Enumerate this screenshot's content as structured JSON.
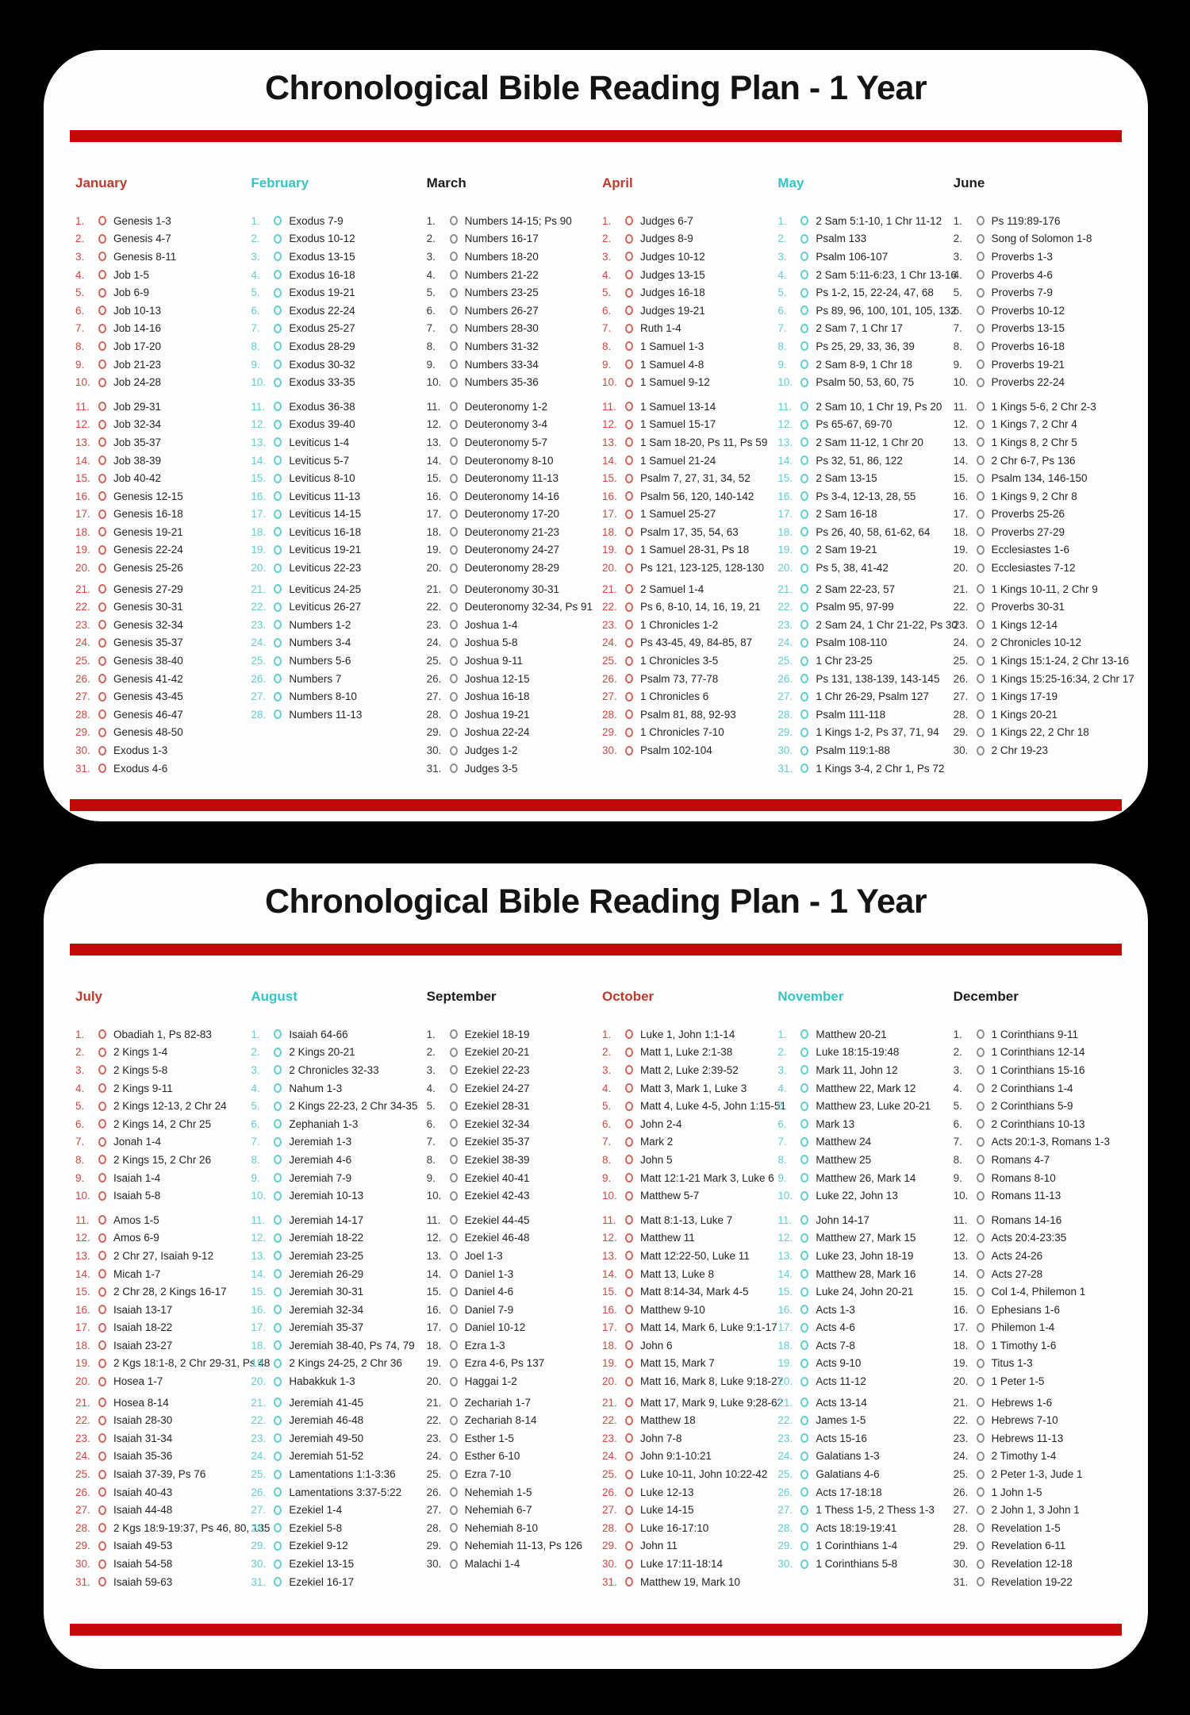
{
  "colors": {
    "background": "#000000",
    "card": "#fdfdfd",
    "divider_red": "#c40808",
    "month_red": "#bf3a2b",
    "month_cyan": "#35c4c4",
    "month_dark": "#1d1d1d",
    "reading_text": "#242424"
  },
  "pages": [
    {
      "title": "Chronological Bible Reading Plan - 1 Year",
      "months": [
        {
          "name": "January",
          "theme": "red",
          "readings": [
            "Genesis 1-3",
            "Genesis 4-7",
            "Genesis 8-11",
            "Job 1-5",
            "Job 6-9",
            "Job 10-13",
            "Job 14-16",
            "Job 17-20",
            "Job 21-23",
            "Job 24-28",
            "Job 29-31",
            "Job 32-34",
            "Job 35-37",
            "Job 38-39",
            "Job 40-42",
            "Genesis 12-15",
            "Genesis 16-18",
            "Genesis 19-21",
            "Genesis 22-24",
            "Genesis 25-26",
            "Genesis 27-29",
            "Genesis 30-31",
            "Genesis 32-34",
            "Genesis 35-37",
            "Genesis 38-40",
            "Genesis 41-42",
            "Genesis 43-45",
            "Genesis 46-47",
            "Genesis 48-50",
            "Exodus 1-3",
            "Exodus 4-6"
          ]
        },
        {
          "name": "February",
          "theme": "cyan",
          "readings": [
            "Exodus 7-9",
            "Exodus 10-12",
            "Exodus 13-15",
            "Exodus 16-18",
            "Exodus 19-21",
            "Exodus 22-24",
            "Exodus 25-27",
            "Exodus 28-29",
            "Exodus 30-32",
            "Exodus 33-35",
            "Exodus 36-38",
            "Exodus 39-40",
            "Leviticus 1-4",
            "Leviticus 5-7",
            "Leviticus 8-10",
            "Leviticus 11-13",
            "Leviticus 14-15",
            "Leviticus 16-18",
            "Leviticus 19-21",
            "Leviticus 22-23",
            "Leviticus 24-25",
            "Leviticus 26-27",
            "Numbers 1-2",
            "Numbers 3-4",
            "Numbers 5-6",
            "Numbers 7",
            "Numbers 8-10",
            "Numbers 11-13"
          ]
        },
        {
          "name": "March",
          "theme": "dark",
          "readings": [
            "Numbers 14-15; Ps 90",
            "Numbers 16-17",
            "Numbers 18-20",
            "Numbers 21-22",
            "Numbers 23-25",
            "Numbers 26-27",
            "Numbers 28-30",
            "Numbers 31-32",
            "Numbers 33-34",
            "Numbers 35-36",
            "Deuteronomy 1-2",
            "Deuteronomy 3-4",
            "Deuteronomy 5-7",
            "Deuteronomy 8-10",
            "Deuteronomy 11-13",
            "Deuteronomy 14-16",
            "Deuteronomy 17-20",
            "Deuteronomy 21-23",
            "Deuteronomy 24-27",
            "Deuteronomy 28-29",
            "Deuteronomy 30-31",
            "Deuteronomy 32-34, Ps 91",
            "Joshua 1-4",
            "Joshua 5-8",
            "Joshua 9-11",
            "Joshua 12-15",
            "Joshua 16-18",
            "Joshua 19-21",
            "Joshua 22-24",
            "Judges 1-2",
            "Judges 3-5"
          ]
        },
        {
          "name": "April",
          "theme": "red",
          "readings": [
            "Judges 6-7",
            "Judges 8-9",
            "Judges 10-12",
            "Judges 13-15",
            "Judges 16-18",
            "Judges 19-21",
            "Ruth 1-4",
            "1 Samuel 1-3",
            "1 Samuel 4-8",
            "1 Samuel 9-12",
            "1 Samuel 13-14",
            "1 Samuel 15-17",
            "1 Sam 18-20, Ps 11, Ps 59",
            "1 Samuel 21-24",
            "Psalm 7, 27, 31, 34, 52",
            "Psalm 56, 120, 140-142",
            "1 Samuel 25-27",
            "Psalm 17, 35, 54, 63",
            "1 Samuel 28-31, Ps 18",
            "Ps 121, 123-125, 128-130",
            "2 Samuel 1-4",
            "Ps 6, 8-10, 14, 16, 19, 21",
            "1 Chronicles 1-2",
            "Ps 43-45, 49, 84-85, 87",
            "1 Chronicles 3-5",
            "Psalm 73, 77-78",
            "1 Chronicles 6",
            "Psalm 81, 88, 92-93",
            "1 Chronicles 7-10",
            "Psalm 102-104"
          ]
        },
        {
          "name": "May",
          "theme": "cyan",
          "readings": [
            "2 Sam 5:1-10, 1 Chr 11-12",
            "Psalm 133",
            "Psalm 106-107",
            "2 Sam 5:11-6:23, 1 Chr 13-16",
            "Ps 1-2, 15, 22-24, 47, 68",
            "Ps 89, 96, 100, 101, 105, 132",
            "2 Sam 7, 1 Chr 17",
            "Ps 25, 29, 33, 36, 39",
            "2 Sam 8-9, 1 Chr 18",
            "Psalm 50, 53, 60, 75",
            "2 Sam 10, 1 Chr 19, Ps 20",
            "Ps 65-67, 69-70",
            "2 Sam 11-12, 1 Chr 20",
            "Ps 32, 51, 86, 122",
            "2 Sam 13-15",
            "Ps 3-4, 12-13, 28, 55",
            "2 Sam 16-18",
            "Ps 26, 40, 58, 61-62, 64",
            "2 Sam 19-21",
            "Ps 5, 38, 41-42",
            "2 Sam 22-23, 57",
            "Psalm 95, 97-99",
            "2 Sam 24, 1 Chr 21-22, Ps 30",
            "Psalm 108-110",
            "1 Chr 23-25",
            "Ps 131, 138-139, 143-145",
            "1 Chr 26-29, Psalm 127",
            "Psalm 111-118",
            "1 Kings 1-2, Ps 37, 71, 94",
            "Psalm 119:1-88",
            "1 Kings 3-4, 2 Chr 1, Ps 72"
          ]
        },
        {
          "name": "June",
          "theme": "dark",
          "readings": [
            "Ps 119:89-176",
            "Song of Solomon 1-8",
            "Proverbs 1-3",
            "Proverbs 4-6",
            "Proverbs 7-9",
            "Proverbs 10-12",
            "Proverbs 13-15",
            "Proverbs 16-18",
            "Proverbs 19-21",
            "Proverbs 22-24",
            "1 Kings 5-6, 2 Chr 2-3",
            "1 Kings 7, 2 Chr 4",
            "1 Kings 8, 2 Chr 5",
            "2 Chr 6-7, Ps 136",
            "Psalm 134, 146-150",
            "1 Kings 9, 2 Chr 8",
            "Proverbs 25-26",
            "Proverbs 27-29",
            "Ecclesiastes 1-6",
            "Ecclesiastes 7-12",
            "1 Kings 10-11, 2 Chr 9",
            "Proverbs 30-31",
            "1 Kings 12-14",
            "2 Chronicles 10-12",
            "1 Kings 15:1-24, 2 Chr 13-16",
            "1 Kings 15:25-16:34, 2 Chr 17",
            "1 Kings 17-19",
            "1 Kings 20-21",
            "1 Kings 22, 2 Chr 18",
            "2 Chr 19-23"
          ]
        }
      ]
    },
    {
      "title": "Chronological Bible Reading Plan - 1 Year",
      "months": [
        {
          "name": "July",
          "theme": "red",
          "readings": [
            "Obadiah 1, Ps 82-83",
            "2 Kings 1-4",
            "2 Kings 5-8",
            "2 Kings 9-11",
            "2 Kings 12-13, 2 Chr 24",
            "2 Kings 14, 2 Chr 25",
            "Jonah 1-4",
            "2 Kings 15, 2 Chr 26",
            "Isaiah 1-4",
            "Isaiah 5-8",
            "Amos 1-5",
            "Amos 6-9",
            "2 Chr 27, Isaiah 9-12",
            "Micah 1-7",
            "2 Chr 28, 2 Kings 16-17",
            "Isaiah 13-17",
            "Isaiah 18-22",
            "Isaiah 23-27",
            "2 Kgs 18:1-8, 2 Chr 29-31, Ps 48",
            "Hosea 1-7",
            "Hosea 8-14",
            "Isaiah 28-30",
            "Isaiah 31-34",
            "Isaiah 35-36",
            "Isaiah 37-39, Ps 76",
            "Isaiah 40-43",
            "Isaiah 44-48",
            "2 Kgs 18:9-19:37, Ps 46, 80, 135",
            "Isaiah 49-53",
            "Isaiah 54-58",
            "Isaiah 59-63"
          ]
        },
        {
          "name": "August",
          "theme": "cyan",
          "readings": [
            "Isaiah 64-66",
            "2 Kings 20-21",
            "2 Chronicles 32-33",
            "Nahum 1-3",
            "2 Kings 22-23, 2 Chr 34-35",
            "Zephaniah 1-3",
            "Jeremiah 1-3",
            "Jeremiah 4-6",
            "Jeremiah 7-9",
            "Jeremiah 10-13",
            "Jeremiah 14-17",
            "Jeremiah 18-22",
            "Jeremiah 23-25",
            "Jeremiah 26-29",
            "Jeremiah 30-31",
            "Jeremiah 32-34",
            "Jeremiah 35-37",
            "Jeremiah 38-40, Ps 74, 79",
            "2 Kings 24-25, 2 Chr 36",
            "Habakkuk 1-3",
            "Jeremiah 41-45",
            "Jeremiah 46-48",
            "Jeremiah 49-50",
            "Jeremiah 51-52",
            "Lamentations 1:1-3:36",
            "Lamentations 3:37-5:22",
            "Ezekiel 1-4",
            "Ezekiel 5-8",
            "Ezekiel 9-12",
            "Ezekiel 13-15",
            "Ezekiel 16-17"
          ]
        },
        {
          "name": "September",
          "theme": "dark",
          "readings": [
            "Ezekiel 18-19",
            "Ezekiel 20-21",
            "Ezekiel 22-23",
            "Ezekiel 24-27",
            "Ezekiel 28-31",
            "Ezekiel 32-34",
            "Ezekiel 35-37",
            "Ezekiel 38-39",
            "Ezekiel 40-41",
            "Ezekiel 42-43",
            "Ezekiel 44-45",
            "Ezekiel 46-48",
            "Joel 1-3",
            "Daniel 1-3",
            "Daniel 4-6",
            "Daniel 7-9",
            "Daniel 10-12",
            "Ezra 1-3",
            "Ezra 4-6, Ps 137",
            "Haggai 1-2",
            "Zechariah 1-7",
            "Zechariah 8-14",
            "Esther 1-5",
            "Esther 6-10",
            "Ezra 7-10",
            "Nehemiah 1-5",
            "Nehemiah 6-7",
            "Nehemiah 8-10",
            "Nehemiah 11-13, Ps 126",
            "Malachi 1-4"
          ]
        },
        {
          "name": "October",
          "theme": "red",
          "readings": [
            "Luke 1, John 1:1-14",
            "Matt 1, Luke 2:1-38",
            "Matt 2, Luke 2:39-52",
            "Matt 3, Mark 1, Luke 3",
            "Matt 4, Luke 4-5, John 1:15-51",
            "John 2-4",
            "Mark 2",
            "John 5",
            "Matt 12:1-21 Mark 3, Luke 6",
            "Matthew 5-7",
            "Matt 8:1-13, Luke 7",
            "Matthew 11",
            "Matt 12:22-50, Luke 11",
            "Matt 13, Luke 8",
            "Matt 8:14-34, Mark 4-5",
            "Matthew 9-10",
            "Matt 14, Mark 6, Luke 9:1-17",
            "John 6",
            "Matt 15, Mark 7",
            "Matt 16, Mark 8, Luke 9:18-27",
            "Matt 17, Mark 9, Luke 9:28-62",
            "Matthew 18",
            "John 7-8",
            "John 9:1-10:21",
            "Luke 10-11, John 10:22-42",
            "Luke 12-13",
            "Luke 14-15",
            "Luke 16-17:10",
            "John 11",
            "Luke 17:11-18:14",
            "Matthew 19, Mark 10"
          ]
        },
        {
          "name": "November",
          "theme": "cyan",
          "readings": [
            "Matthew 20-21",
            "Luke 18:15-19:48",
            "Mark 11, John 12",
            "Matthew 22, Mark 12",
            "Matthew 23, Luke 20-21",
            "Mark 13",
            "Matthew 24",
            "Matthew 25",
            "Matthew 26, Mark 14",
            "Luke 22, John 13",
            "John 14-17",
            "Matthew 27, Mark 15",
            "Luke 23, John 18-19",
            "Matthew 28, Mark 16",
            "Luke 24, John 20-21",
            "Acts 1-3",
            "Acts 4-6",
            "Acts 7-8",
            "Acts 9-10",
            "Acts 11-12",
            "Acts 13-14",
            "James 1-5",
            "Acts 15-16",
            "Galatians 1-3",
            "Galatians 4-6",
            "Acts 17-18:18",
            "1 Thess 1-5, 2 Thess 1-3",
            "Acts 18:19-19:41",
            "1 Corinthians 1-4",
            "1 Corinthians 5-8"
          ]
        },
        {
          "name": "December",
          "theme": "dark",
          "readings": [
            "1 Corinthians 9-11",
            "1 Corinthians 12-14",
            "1 Corinthians 15-16",
            "2 Corinthians 1-4",
            "2 Corinthians 5-9",
            "2 Corinthians 10-13",
            "Acts 20:1-3, Romans 1-3",
            "Romans 4-7",
            "Romans 8-10",
            "Romans 11-13",
            "Romans 14-16",
            "Acts 20:4-23:35",
            "Acts 24-26",
            "Acts 27-28",
            "Col 1-4, Philemon 1",
            "Ephesians 1-6",
            "Philemon 1-4",
            "1 Timothy 1-6",
            "Titus 1-3",
            "1 Peter 1-5",
            "Hebrews 1-6",
            "Hebrews 7-10",
            "Hebrews 11-13",
            "2 Timothy 1-4",
            "2 Peter 1-3, Jude 1",
            "1 John 1-5",
            "2 John 1, 3 John 1",
            "Revelation 1-5",
            "Revelation 6-11",
            "Revelation 12-18",
            "Revelation 19-22"
          ]
        }
      ]
    }
  ]
}
